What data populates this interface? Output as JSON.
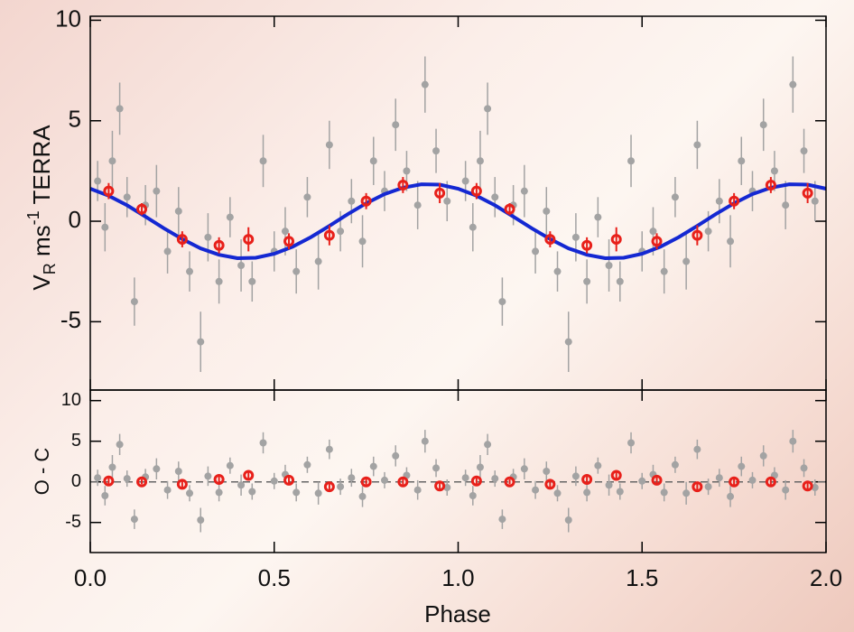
{
  "chart_data": [
    {
      "type": "scatter",
      "ylabel": {
        "main": "V",
        "sub": "R",
        "mid": " ms",
        "sup": "-1",
        "end": " TERRA"
      },
      "xlim": [
        0,
        2
      ],
      "ylim": [
        -8.4,
        10.2
      ],
      "yticks": [
        -5,
        0,
        5,
        10
      ],
      "series": [
        {
          "style": "points",
          "color": "#a3a3a3",
          "x": [
            0.02,
            0.04,
            0.06,
            0.08,
            0.1,
            0.12,
            0.15,
            0.18,
            0.21,
            0.24,
            0.27,
            0.3,
            0.32,
            0.35,
            0.38,
            0.41,
            0.44,
            0.47,
            0.5,
            0.53,
            0.56,
            0.59,
            0.62,
            0.65,
            0.68,
            0.71,
            0.74,
            0.77,
            0.8,
            0.83,
            0.86,
            0.89,
            0.91,
            0.94,
            0.97,
            1.02,
            1.04,
            1.06,
            1.08,
            1.1,
            1.12,
            1.15,
            1.18,
            1.21,
            1.24,
            1.27,
            1.3,
            1.32,
            1.35,
            1.38,
            1.41,
            1.44,
            1.47,
            1.5,
            1.53,
            1.56,
            1.59,
            1.62,
            1.65,
            1.68,
            1.71,
            1.74,
            1.77,
            1.8,
            1.83,
            1.86,
            1.89,
            1.91,
            1.94,
            1.97
          ],
          "values": [
            2.0,
            -0.3,
            3.0,
            5.6,
            1.2,
            -4.0,
            0.8,
            1.5,
            -1.5,
            0.5,
            -2.5,
            -6.0,
            -0.8,
            -3.0,
            0.2,
            -2.2,
            -3.0,
            3.0,
            -1.5,
            -0.5,
            -2.5,
            1.2,
            -2.0,
            3.8,
            -0.5,
            1.0,
            -1.0,
            3.0,
            1.5,
            4.8,
            2.5,
            0.8,
            6.8,
            3.5,
            1.0,
            2.0,
            -0.3,
            3.0,
            5.6,
            1.2,
            -4.0,
            0.8,
            1.5,
            -1.5,
            0.5,
            -2.5,
            -6.0,
            -0.8,
            -3.0,
            0.2,
            -2.2,
            -3.0,
            3.0,
            -1.5,
            -0.5,
            -2.5,
            1.2,
            -2.0,
            3.8,
            -0.5,
            1.0,
            -1.0,
            3.0,
            1.5,
            4.8,
            2.5,
            0.8,
            6.8,
            3.5,
            1.0
          ],
          "errors": [
            1.0,
            1.2,
            1.5,
            1.3,
            1.0,
            1.2,
            1.0,
            1.3,
            1.1,
            1.2,
            1.0,
            1.5,
            1.2,
            1.1,
            1.0,
            1.3,
            1.0,
            1.3,
            1.0,
            1.2,
            1.1,
            1.0,
            1.4,
            1.2,
            1.0,
            1.1,
            1.3,
            1.2,
            1.0,
            1.3,
            1.0,
            1.2,
            1.4,
            1.1,
            1.0,
            1.0,
            1.2,
            1.5,
            1.3,
            1.0,
            1.2,
            1.0,
            1.3,
            1.1,
            1.2,
            1.0,
            1.5,
            1.2,
            1.1,
            1.0,
            1.3,
            1.0,
            1.3,
            1.0,
            1.2,
            1.1,
            1.0,
            1.4,
            1.2,
            1.0,
            1.1,
            1.3,
            1.2,
            1.0,
            1.3,
            1.0,
            1.2,
            1.4,
            1.1,
            1.0
          ]
        },
        {
          "style": "line",
          "color": "#1428d2",
          "x": [
            0,
            0.05,
            0.1,
            0.15,
            0.2,
            0.25,
            0.3,
            0.35,
            0.4,
            0.45,
            0.5,
            0.55,
            0.6,
            0.65,
            0.7,
            0.75,
            0.8,
            0.85,
            0.9,
            0.95,
            1.0,
            1.05,
            1.1,
            1.15,
            1.2,
            1.25,
            1.3,
            1.35,
            1.4,
            1.45,
            1.5,
            1.55,
            1.6,
            1.65,
            1.7,
            1.75,
            1.8,
            1.85,
            1.9,
            1.95,
            2.0
          ],
          "values": [
            1.62,
            1.27,
            0.79,
            0.23,
            -0.35,
            -0.89,
            -1.35,
            -1.67,
            -1.84,
            -1.82,
            -1.62,
            -1.27,
            -0.79,
            -0.23,
            0.35,
            0.89,
            1.35,
            1.67,
            1.84,
            1.82,
            1.62,
            1.27,
            0.79,
            0.23,
            -0.35,
            -0.89,
            -1.35,
            -1.67,
            -1.84,
            -1.82,
            -1.62,
            -1.27,
            -0.79,
            -0.23,
            0.35,
            0.89,
            1.35,
            1.67,
            1.84,
            1.82,
            1.62
          ]
        },
        {
          "style": "rings",
          "color": "#e8201a",
          "x": [
            0.05,
            0.14,
            0.25,
            0.35,
            0.43,
            0.54,
            0.65,
            0.75,
            0.85,
            0.95,
            1.05,
            1.14,
            1.25,
            1.35,
            1.43,
            1.54,
            1.65,
            1.75,
            1.85,
            1.95
          ],
          "values": [
            1.5,
            0.6,
            -0.9,
            -1.2,
            -0.9,
            -1.0,
            -0.7,
            1.0,
            1.8,
            1.4,
            1.5,
            0.6,
            -0.9,
            -1.2,
            -0.9,
            -1.0,
            -0.7,
            1.0,
            1.8,
            1.4
          ],
          "errors": [
            0.4,
            0.3,
            0.4,
            0.4,
            0.6,
            0.4,
            0.5,
            0.4,
            0.4,
            0.5,
            0.4,
            0.3,
            0.4,
            0.4,
            0.6,
            0.4,
            0.5,
            0.4,
            0.4,
            0.5
          ]
        }
      ]
    },
    {
      "type": "scatter",
      "ylabel": "O - C",
      "xlabel": "Phase",
      "xlim": [
        0,
        2
      ],
      "ylim": [
        -8.7,
        11.3
      ],
      "yticks": [
        -5,
        0,
        5,
        10
      ],
      "xticks": [
        {
          "value": 0,
          "label": "0.0"
        },
        {
          "value": 0.5,
          "label": "0.5"
        },
        {
          "value": 1,
          "label": "1.0"
        },
        {
          "value": 1.5,
          "label": "1.5"
        },
        {
          "value": 2,
          "label": "2.0"
        }
      ],
      "zero_line": true,
      "series": [
        {
          "style": "points",
          "color": "#a3a3a3",
          "x": [
            0.02,
            0.04,
            0.06,
            0.08,
            0.1,
            0.12,
            0.15,
            0.18,
            0.21,
            0.24,
            0.27,
            0.3,
            0.32,
            0.35,
            0.38,
            0.41,
            0.44,
            0.47,
            0.5,
            0.53,
            0.56,
            0.59,
            0.62,
            0.65,
            0.68,
            0.71,
            0.74,
            0.77,
            0.8,
            0.83,
            0.86,
            0.89,
            0.91,
            0.94,
            0.97,
            1.02,
            1.04,
            1.06,
            1.08,
            1.1,
            1.12,
            1.15,
            1.18,
            1.21,
            1.24,
            1.27,
            1.3,
            1.32,
            1.35,
            1.38,
            1.41,
            1.44,
            1.47,
            1.5,
            1.53,
            1.56,
            1.59,
            1.62,
            1.65,
            1.68,
            1.71,
            1.74,
            1.77,
            1.8,
            1.83,
            1.86,
            1.89,
            1.91,
            1.94,
            1.97
          ],
          "values": [
            0.5,
            -1.7,
            1.8,
            4.6,
            0.4,
            -4.6,
            0.6,
            1.6,
            -1.0,
            1.3,
            -1.4,
            -4.7,
            0.7,
            -1.3,
            2.0,
            -0.4,
            -1.2,
            4.8,
            0.1,
            0.9,
            -1.3,
            2.1,
            -1.4,
            4.0,
            -0.6,
            0.5,
            -1.8,
            1.9,
            0.2,
            3.2,
            0.8,
            -1.0,
            5.0,
            1.7,
            -0.7,
            0.5,
            -1.7,
            1.8,
            4.6,
            0.4,
            -4.6,
            0.6,
            1.6,
            -1.0,
            1.3,
            -1.4,
            -4.7,
            0.7,
            -1.3,
            2.0,
            -0.4,
            -1.2,
            4.8,
            0.1,
            0.9,
            -1.3,
            2.1,
            -1.4,
            4.0,
            -0.6,
            0.5,
            -1.8,
            1.9,
            0.2,
            3.2,
            0.8,
            -1.0,
            5.0,
            1.7,
            -0.7
          ],
          "errors": [
            1.0,
            1.2,
            1.5,
            1.3,
            1.0,
            1.2,
            1.0,
            1.3,
            1.1,
            1.2,
            1.0,
            1.5,
            1.2,
            1.1,
            1.0,
            1.3,
            1.0,
            1.3,
            1.0,
            1.2,
            1.1,
            1.0,
            1.4,
            1.2,
            1.0,
            1.1,
            1.3,
            1.2,
            1.0,
            1.3,
            1.0,
            1.2,
            1.4,
            1.1,
            1.0,
            1.0,
            1.2,
            1.5,
            1.3,
            1.0,
            1.2,
            1.0,
            1.3,
            1.1,
            1.2,
            1.0,
            1.5,
            1.2,
            1.1,
            1.0,
            1.3,
            1.0,
            1.3,
            1.0,
            1.2,
            1.1,
            1.0,
            1.4,
            1.2,
            1.0,
            1.1,
            1.3,
            1.2,
            1.0,
            1.3,
            1.0,
            1.2,
            1.4,
            1.1,
            1.0
          ]
        },
        {
          "style": "rings",
          "color": "#e8201a",
          "x": [
            0.05,
            0.14,
            0.25,
            0.35,
            0.43,
            0.54,
            0.65,
            0.75,
            0.85,
            0.95,
            1.05,
            1.14,
            1.25,
            1.35,
            1.43,
            1.54,
            1.65,
            1.75,
            1.85,
            1.95
          ],
          "values": [
            0.1,
            0.0,
            -0.3,
            0.3,
            0.8,
            0.2,
            -0.6,
            0.0,
            0.0,
            -0.5,
            0.1,
            0.0,
            -0.3,
            0.3,
            0.8,
            0.2,
            -0.6,
            0.0,
            0.0,
            -0.5
          ],
          "errors": [
            0.4,
            0.3,
            0.4,
            0.4,
            0.6,
            0.4,
            0.5,
            0.4,
            0.4,
            0.5,
            0.4,
            0.3,
            0.4,
            0.4,
            0.6,
            0.4,
            0.5,
            0.4,
            0.4,
            0.5
          ]
        }
      ]
    }
  ]
}
